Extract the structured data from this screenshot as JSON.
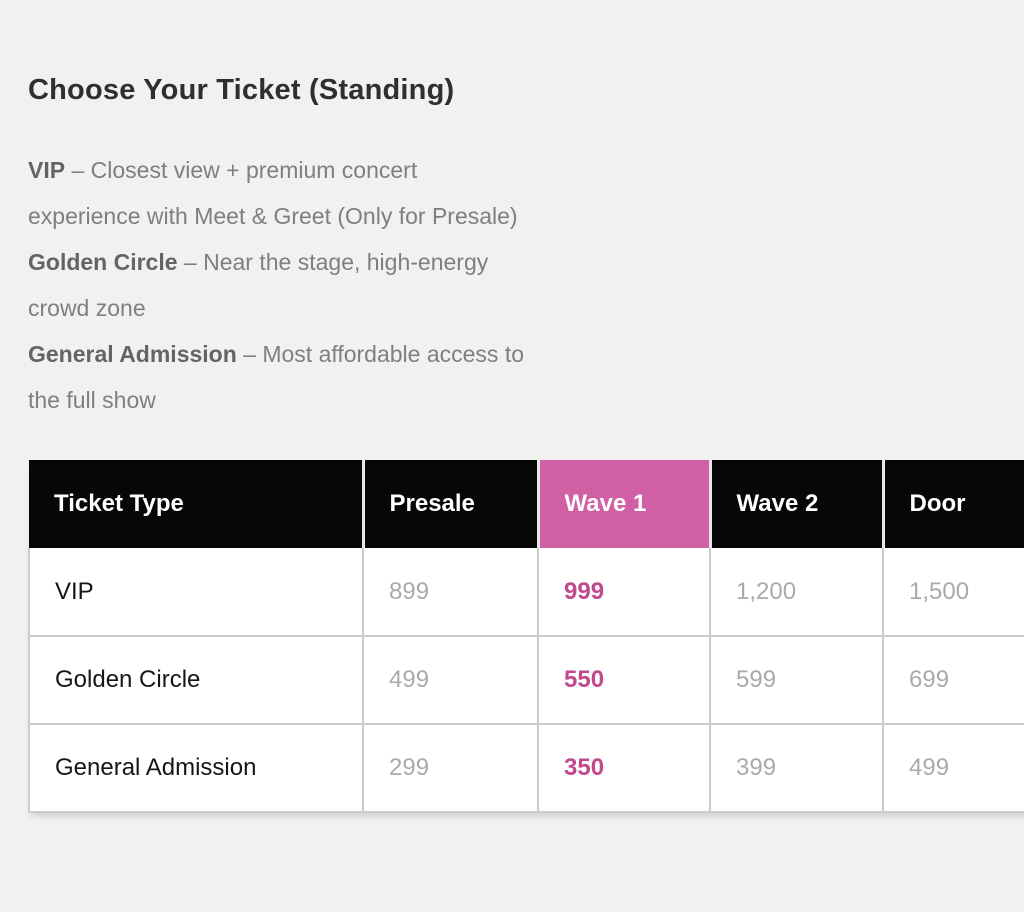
{
  "page": {
    "background": "#f1f1f0"
  },
  "header": {
    "title": "Choose Your Ticket (Standing)"
  },
  "description": {
    "lines": [
      {
        "bold": "VIP",
        "rest": " – Closest view + premium concert"
      },
      {
        "bold": "",
        "rest": "experience with Meet & Greet (Only for Presale)"
      },
      {
        "bold": "Golden Circle",
        "rest": " – Near the stage, high-energy"
      },
      {
        "bold": "",
        "rest": "crowd zone"
      },
      {
        "bold": "General Admission",
        "rest": " – Most affordable access to"
      },
      {
        "bold": "",
        "rest": "the full show"
      }
    ]
  },
  "pricing_table": {
    "columns": [
      {
        "label": "Ticket Type",
        "highlight": false
      },
      {
        "label": "Presale",
        "highlight": false
      },
      {
        "label": "Wave 1",
        "highlight": true
      },
      {
        "label": "Wave 2",
        "highlight": false
      },
      {
        "label": "Door",
        "highlight": false
      }
    ],
    "rows": [
      {
        "ticket_type": "VIP",
        "presale": "899",
        "wave1": "999",
        "wave2": "1,200",
        "door": "1,500"
      },
      {
        "ticket_type": "Golden Circle",
        "presale": "499",
        "wave1": "550",
        "wave2": "599",
        "door": "699"
      },
      {
        "ticket_type": "General Admission",
        "presale": "299",
        "wave1": "350",
        "wave2": "399",
        "door": "499"
      }
    ],
    "highlighted_column": "Wave 1"
  },
  "colors": {
    "page_background": "#f1f1f0",
    "table_header_background": "#070707",
    "highlight_header_background": "#d15fa4",
    "highlight_value_text": "#c1488f",
    "muted_value_text": "#a9aaac"
  }
}
